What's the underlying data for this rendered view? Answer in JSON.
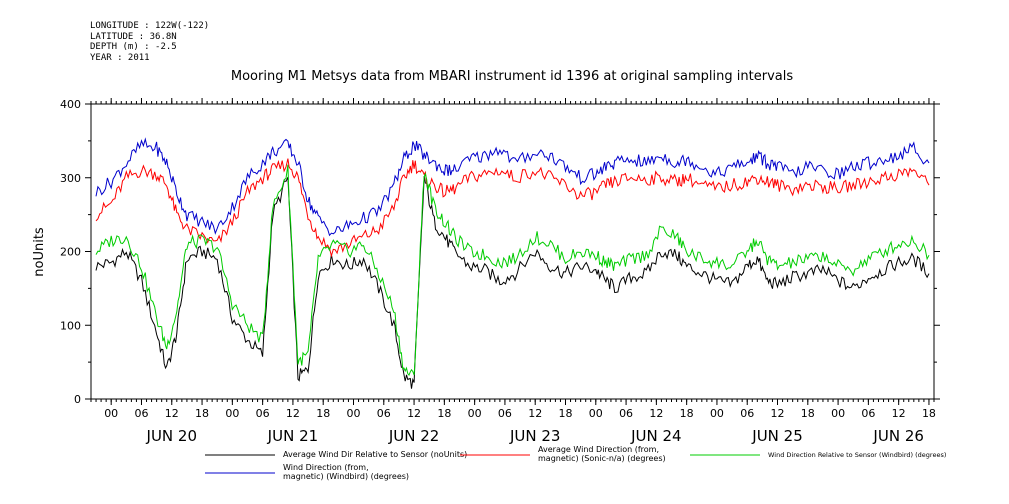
{
  "meta": {
    "longitude": "LONGITUDE : 122W(-122)",
    "latitude": "LATITUDE : 36.8N",
    "depth": "DEPTH (m) : -2.5",
    "year": "YEAR : 2011"
  },
  "chart_data": {
    "type": "line",
    "title": "Mooring M1 Metsys data from MBARI instrument id 1396 at original sampling intervals",
    "ylabel": "noUnits",
    "xlabel": "",
    "ylim": [
      0,
      400
    ],
    "yticks": [
      0,
      100,
      200,
      300,
      400
    ],
    "xlim_hours": [
      -4,
      163
    ],
    "hour_tick_labels": [
      "00",
      "06",
      "12",
      "18",
      "00",
      "06",
      "12",
      "18",
      "00",
      "06",
      "12",
      "18",
      "00",
      "06",
      "12",
      "18",
      "00",
      "06",
      "12",
      "18",
      "00",
      "06",
      "12",
      "18",
      "00",
      "06",
      "12",
      "18"
    ],
    "day_labels": [
      "JUN 20",
      "JUN 21",
      "JUN 22",
      "JUN 23",
      "JUN 24",
      "JUN 25",
      "JUN 26"
    ],
    "grid": false,
    "legend_position": "bottom",
    "series": [
      {
        "name": "Average Wind Dir Relative to Sensor (noUnits)",
        "color": "#000000",
        "points": [
          [
            -3,
            180
          ],
          [
            0,
            185
          ],
          [
            3,
            200
          ],
          [
            6,
            160
          ],
          [
            9,
            90
          ],
          [
            11,
            40
          ],
          [
            13,
            90
          ],
          [
            15,
            190
          ],
          [
            18,
            200
          ],
          [
            21,
            190
          ],
          [
            24,
            110
          ],
          [
            27,
            80
          ],
          [
            30,
            60
          ],
          [
            32,
            250
          ],
          [
            35,
            300
          ],
          [
            37,
            30
          ],
          [
            39,
            40
          ],
          [
            41,
            170
          ],
          [
            44,
            190
          ],
          [
            47,
            180
          ],
          [
            50,
            190
          ],
          [
            53,
            150
          ],
          [
            56,
            100
          ],
          [
            58,
            30
          ],
          [
            60,
            20
          ],
          [
            62,
            300
          ],
          [
            64,
            240
          ],
          [
            66,
            220
          ],
          [
            68,
            200
          ],
          [
            71,
            180
          ],
          [
            74,
            175
          ],
          [
            77,
            160
          ],
          [
            80,
            170
          ],
          [
            84,
            200
          ],
          [
            87,
            180
          ],
          [
            90,
            170
          ],
          [
            93,
            180
          ],
          [
            96,
            175
          ],
          [
            98,
            160
          ],
          [
            100,
            150
          ],
          [
            103,
            165
          ],
          [
            106,
            170
          ],
          [
            109,
            200
          ],
          [
            112,
            195
          ],
          [
            114,
            180
          ],
          [
            117,
            170
          ],
          [
            120,
            160
          ],
          [
            123,
            155
          ],
          [
            126,
            180
          ],
          [
            128,
            190
          ],
          [
            130,
            160
          ],
          [
            132,
            155
          ],
          [
            135,
            165
          ],
          [
            138,
            170
          ],
          [
            141,
            175
          ],
          [
            144,
            160
          ],
          [
            147,
            150
          ],
          [
            150,
            165
          ],
          [
            153,
            175
          ],
          [
            156,
            185
          ],
          [
            159,
            190
          ],
          [
            162,
            170
          ]
        ]
      },
      {
        "name": "Average Wind Direction (from, magnetic) (Sonic-n/a) (degrees)",
        "color": "#ff0000",
        "points": [
          [
            -3,
            250
          ],
          [
            0,
            265
          ],
          [
            3,
            300
          ],
          [
            6,
            310
          ],
          [
            9,
            305
          ],
          [
            11,
            290
          ],
          [
            13,
            250
          ],
          [
            15,
            230
          ],
          [
            18,
            220
          ],
          [
            21,
            210
          ],
          [
            24,
            240
          ],
          [
            27,
            280
          ],
          [
            30,
            300
          ],
          [
            32,
            310
          ],
          [
            35,
            320
          ],
          [
            37,
            300
          ],
          [
            39,
            250
          ],
          [
            41,
            220
          ],
          [
            44,
            200
          ],
          [
            47,
            210
          ],
          [
            50,
            220
          ],
          [
            53,
            230
          ],
          [
            56,
            260
          ],
          [
            58,
            300
          ],
          [
            60,
            320
          ],
          [
            62,
            300
          ],
          [
            64,
            290
          ],
          [
            66,
            280
          ],
          [
            68,
            285
          ],
          [
            71,
            300
          ],
          [
            74,
            305
          ],
          [
            77,
            310
          ],
          [
            80,
            300
          ],
          [
            84,
            310
          ],
          [
            87,
            300
          ],
          [
            90,
            290
          ],
          [
            93,
            275
          ],
          [
            96,
            280
          ],
          [
            98,
            290
          ],
          [
            100,
            295
          ],
          [
            103,
            300
          ],
          [
            106,
            298
          ],
          [
            109,
            300
          ],
          [
            112,
            295
          ],
          [
            114,
            300
          ],
          [
            117,
            290
          ],
          [
            120,
            285
          ],
          [
            123,
            290
          ],
          [
            126,
            295
          ],
          [
            128,
            300
          ],
          [
            130,
            295
          ],
          [
            132,
            290
          ],
          [
            135,
            285
          ],
          [
            138,
            290
          ],
          [
            141,
            288
          ],
          [
            144,
            285
          ],
          [
            147,
            290
          ],
          [
            150,
            295
          ],
          [
            153,
            300
          ],
          [
            156,
            305
          ],
          [
            159,
            310
          ],
          [
            162,
            290
          ]
        ]
      },
      {
        "name": "Wind Direction Relative to Sensor (Windbird) (degrees)",
        "color": "#00cc00",
        "points": [
          [
            -3,
            200
          ],
          [
            0,
            215
          ],
          [
            3,
            220
          ],
          [
            6,
            180
          ],
          [
            9,
            110
          ],
          [
            11,
            70
          ],
          [
            13,
            120
          ],
          [
            15,
            210
          ],
          [
            18,
            215
          ],
          [
            21,
            205
          ],
          [
            24,
            130
          ],
          [
            27,
            100
          ],
          [
            30,
            80
          ],
          [
            32,
            260
          ],
          [
            35,
            310
          ],
          [
            37,
            50
          ],
          [
            39,
            60
          ],
          [
            41,
            190
          ],
          [
            44,
            210
          ],
          [
            47,
            200
          ],
          [
            50,
            210
          ],
          [
            53,
            170
          ],
          [
            56,
            120
          ],
          [
            58,
            40
          ],
          [
            60,
            30
          ],
          [
            62,
            310
          ],
          [
            64,
            260
          ],
          [
            66,
            240
          ],
          [
            68,
            220
          ],
          [
            71,
            200
          ],
          [
            74,
            195
          ],
          [
            77,
            185
          ],
          [
            80,
            190
          ],
          [
            84,
            220
          ],
          [
            87,
            210
          ],
          [
            90,
            190
          ],
          [
            93,
            200
          ],
          [
            96,
            195
          ],
          [
            98,
            185
          ],
          [
            100,
            180
          ],
          [
            103,
            190
          ],
          [
            106,
            195
          ],
          [
            109,
            230
          ],
          [
            112,
            220
          ],
          [
            114,
            200
          ],
          [
            117,
            190
          ],
          [
            120,
            185
          ],
          [
            123,
            180
          ],
          [
            126,
            200
          ],
          [
            128,
            215
          ],
          [
            130,
            190
          ],
          [
            132,
            180
          ],
          [
            135,
            185
          ],
          [
            138,
            190
          ],
          [
            141,
            195
          ],
          [
            144,
            180
          ],
          [
            147,
            175
          ],
          [
            150,
            190
          ],
          [
            153,
            200
          ],
          [
            156,
            210
          ],
          [
            159,
            215
          ],
          [
            162,
            195
          ]
        ]
      },
      {
        "name": "Wind Direction (from, magnetic) (Windbird) (degrees)",
        "color": "#0000cc",
        "points": [
          [
            -3,
            280
          ],
          [
            0,
            295
          ],
          [
            3,
            320
          ],
          [
            6,
            345
          ],
          [
            9,
            340
          ],
          [
            11,
            320
          ],
          [
            13,
            280
          ],
          [
            15,
            250
          ],
          [
            18,
            240
          ],
          [
            21,
            230
          ],
          [
            24,
            260
          ],
          [
            27,
            300
          ],
          [
            30,
            320
          ],
          [
            32,
            335
          ],
          [
            35,
            345
          ],
          [
            37,
            320
          ],
          [
            39,
            270
          ],
          [
            41,
            245
          ],
          [
            44,
            225
          ],
          [
            47,
            235
          ],
          [
            50,
            245
          ],
          [
            53,
            255
          ],
          [
            56,
            290
          ],
          [
            58,
            325
          ],
          [
            60,
            345
          ],
          [
            62,
            330
          ],
          [
            64,
            320
          ],
          [
            66,
            310
          ],
          [
            68,
            310
          ],
          [
            71,
            325
          ],
          [
            74,
            330
          ],
          [
            77,
            340
          ],
          [
            80,
            320
          ],
          [
            84,
            335
          ],
          [
            87,
            330
          ],
          [
            90,
            315
          ],
          [
            93,
            300
          ],
          [
            96,
            305
          ],
          [
            98,
            315
          ],
          [
            100,
            320
          ],
          [
            103,
            325
          ],
          [
            106,
            320
          ],
          [
            109,
            330
          ],
          [
            112,
            320
          ],
          [
            114,
            325
          ],
          [
            117,
            315
          ],
          [
            120,
            305
          ],
          [
            123,
            315
          ],
          [
            126,
            320
          ],
          [
            128,
            330
          ],
          [
            130,
            320
          ],
          [
            132,
            315
          ],
          [
            135,
            305
          ],
          [
            138,
            315
          ],
          [
            141,
            310
          ],
          [
            144,
            305
          ],
          [
            147,
            315
          ],
          [
            150,
            320
          ],
          [
            153,
            325
          ],
          [
            156,
            330
          ],
          [
            159,
            340
          ],
          [
            162,
            320
          ]
        ]
      }
    ],
    "legend_entries": [
      {
        "label": "Average Wind Dir Relative to Sensor (noUnits)",
        "color": "#000000"
      },
      {
        "label": "Average Wind Direction (from,\n magnetic) (Sonic-n/a) (degrees)",
        "color": "#ff0000"
      },
      {
        "label": "Wind Direction Relative to Sensor (Windbird) (degrees)",
        "color": "#00cc00"
      },
      {
        "label": "Wind Direction (from,\n magnetic) (Windbird) (degrees)",
        "color": "#0000cc"
      }
    ]
  }
}
